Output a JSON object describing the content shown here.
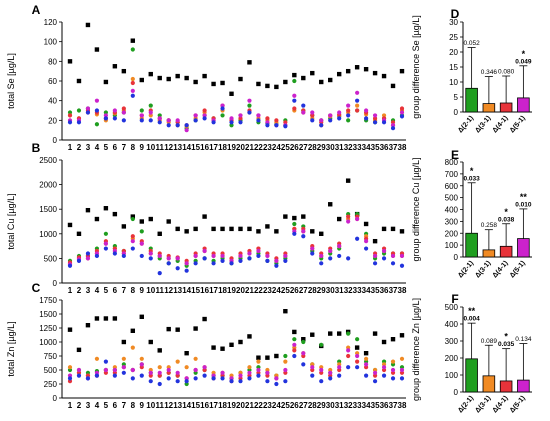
{
  "colors": {
    "g1": "#000000",
    "g2": "#1f9e1f",
    "g3": "#f08a24",
    "g4": "#e8333a",
    "g5": "#cc22cc",
    "g6": "#2233dd"
  },
  "chart_data": [
    {
      "type": "scatter",
      "panel": "A",
      "ylabel": "total Se [µg/L]",
      "ylim": [
        0,
        120
      ],
      "yticks": [
        "0",
        "20",
        "40",
        "60",
        "80",
        "100",
        "120"
      ],
      "x": [
        1,
        2,
        3,
        4,
        5,
        6,
        7,
        8,
        9,
        10,
        11,
        12,
        13,
        14,
        15,
        16,
        17,
        18,
        19,
        20,
        21,
        22,
        23,
        24,
        25,
        26,
        27,
        28,
        29,
        30,
        31,
        32,
        33,
        34,
        35,
        36,
        37,
        38
      ],
      "x_labels": [
        "1",
        "2",
        "3",
        "4",
        "5",
        "6",
        "7",
        "8",
        "9",
        "10",
        "11",
        "12",
        "13",
        "14",
        "15",
        "16",
        "17",
        "18",
        "19",
        "20",
        "21",
        "22",
        "23",
        "24",
        "25",
        "26",
        "27",
        "28",
        "29",
        "30",
        "31",
        "32",
        "33",
        "34",
        "35",
        "36",
        "37",
        "38"
      ],
      "series": [
        {
          "color_key": "g1",
          "values": [
            80,
            60,
            117,
            92,
            59,
            75,
            70,
            101,
            61,
            67,
            63,
            62,
            65,
            63,
            59,
            65,
            57,
            58,
            47,
            62,
            79,
            57,
            55,
            54,
            59,
            66,
            63,
            68,
            59,
            61,
            67,
            70,
            74,
            72,
            68,
            65,
            55,
            70
          ]
        },
        {
          "color_key": "g2",
          "values": [
            28,
            30,
            32,
            16,
            28,
            25,
            28,
            92,
            30,
            35,
            25,
            20,
            18,
            12,
            20,
            25,
            22,
            25,
            15,
            20,
            35,
            18,
            17,
            16,
            20,
            60,
            30,
            25,
            20,
            22,
            24,
            20,
            30,
            20,
            18,
            22,
            20,
            25
          ]
        },
        {
          "color_key": "g3",
          "values": [
            25,
            22,
            28,
            26,
            20,
            27,
            30,
            62,
            22,
            25,
            20,
            18,
            15,
            14,
            22,
            28,
            20,
            30,
            20,
            25,
            28,
            22,
            20,
            18,
            15,
            30,
            28,
            22,
            15,
            24,
            25,
            28,
            35,
            26,
            20,
            25,
            15,
            30
          ]
        },
        {
          "color_key": "g4",
          "values": [
            25,
            22,
            30,
            28,
            22,
            28,
            32,
            58,
            25,
            30,
            22,
            20,
            18,
            15,
            25,
            30,
            22,
            35,
            20,
            22,
            30,
            25,
            22,
            20,
            18,
            32,
            30,
            25,
            18,
            25,
            26,
            30,
            30,
            28,
            22,
            22,
            18,
            32
          ]
        },
        {
          "color_key": "g5",
          "values": [
            20,
            20,
            32,
            40,
            25,
            30,
            28,
            50,
            25,
            28,
            22,
            20,
            20,
            10,
            25,
            25,
            20,
            35,
            22,
            25,
            40,
            25,
            18,
            15,
            15,
            45,
            28,
            28,
            20,
            25,
            28,
            35,
            48,
            30,
            25,
            20,
            15,
            28
          ]
        },
        {
          "color_key": "g6",
          "values": [
            18,
            18,
            28,
            30,
            22,
            22,
            20,
            45,
            20,
            20,
            18,
            15,
            15,
            15,
            20,
            22,
            18,
            32,
            18,
            18,
            28,
            20,
            15,
            15,
            14,
            40,
            35,
            20,
            15,
            20,
            22,
            25,
            40,
            22,
            18,
            18,
            12,
            24
          ]
        }
      ]
    },
    {
      "type": "scatter",
      "panel": "B",
      "ylabel": "total Cu [µg/L]",
      "ylim": [
        0,
        2500
      ],
      "yticks": [
        "0",
        "500",
        "1000",
        "1500",
        "2000",
        "2500"
      ],
      "x": [
        1,
        2,
        3,
        4,
        5,
        6,
        7,
        8,
        9,
        10,
        11,
        12,
        13,
        14,
        15,
        16,
        17,
        18,
        19,
        20,
        21,
        22,
        23,
        24,
        25,
        26,
        27,
        28,
        29,
        30,
        31,
        32,
        33,
        34,
        35,
        36,
        37,
        38
      ],
      "x_labels": [
        "1",
        "2",
        "3",
        "4",
        "5",
        "6",
        "7",
        "8",
        "9",
        "10",
        "11",
        "12",
        "13",
        "14",
        "15",
        "16",
        "17",
        "18",
        "19",
        "20",
        "21",
        "22",
        "23",
        "24",
        "25",
        "26",
        "27",
        "28",
        "29",
        "30",
        "31",
        "32",
        "33",
        "34",
        "35",
        "36",
        "37",
        "38"
      ],
      "series": [
        {
          "color_key": "g1",
          "values": [
            1180,
            1000,
            1480,
            1300,
            1520,
            1400,
            1150,
            1350,
            1250,
            1300,
            1000,
            1250,
            1100,
            1050,
            1100,
            1350,
            1100,
            1100,
            1100,
            1100,
            1100,
            1050,
            1150,
            1050,
            1350,
            1320,
            1350,
            1050,
            1000,
            1600,
            1300,
            2080,
            1400,
            1200,
            850,
            1100,
            1100,
            1050
          ]
        },
        {
          "color_key": "g2",
          "values": [
            450,
            550,
            550,
            700,
            1000,
            750,
            650,
            1300,
            1050,
            700,
            500,
            400,
            450,
            350,
            450,
            500,
            450,
            500,
            400,
            500,
            500,
            600,
            450,
            400,
            500,
            1200,
            1150,
            650,
            500,
            600,
            700,
            1400,
            1400,
            1000,
            500,
            600,
            600,
            600
          ]
        },
        {
          "color_key": "g3",
          "values": [
            400,
            500,
            500,
            600,
            800,
            700,
            600,
            900,
            800,
            600,
            550,
            500,
            500,
            400,
            550,
            650,
            550,
            550,
            450,
            550,
            600,
            700,
            550,
            450,
            550,
            1100,
            1050,
            700,
            550,
            650,
            750,
            1300,
            1300,
            950,
            550,
            650,
            550,
            550
          ]
        },
        {
          "color_key": "g4",
          "values": [
            420,
            520,
            550,
            650,
            850,
            700,
            650,
            950,
            850,
            650,
            600,
            550,
            520,
            450,
            600,
            700,
            600,
            600,
            500,
            600,
            650,
            700,
            600,
            500,
            600,
            1100,
            1100,
            750,
            600,
            700,
            800,
            1350,
            1350,
            900,
            600,
            700,
            600,
            600
          ]
        },
        {
          "color_key": "g5",
          "values": [
            380,
            480,
            500,
            600,
            800,
            650,
            600,
            850,
            800,
            600,
            550,
            500,
            500,
            400,
            550,
            650,
            550,
            550,
            450,
            550,
            600,
            650,
            550,
            450,
            550,
            1050,
            1050,
            700,
            550,
            650,
            750,
            1250,
            1300,
            850,
            550,
            650,
            550,
            550
          ]
        },
        {
          "color_key": "g6",
          "values": [
            350,
            450,
            600,
            550,
            700,
            600,
            550,
            700,
            550,
            500,
            200,
            400,
            300,
            250,
            400,
            500,
            400,
            450,
            400,
            450,
            500,
            550,
            450,
            350,
            450,
            1000,
            950,
            600,
            400,
            500,
            550,
            500,
            900,
            700,
            400,
            500,
            400,
            350
          ]
        }
      ]
    },
    {
      "type": "scatter",
      "panel": "C",
      "ylabel": "total Zn [µg/L]",
      "ylim": [
        0,
        1750
      ],
      "yticks": [
        "0",
        "250",
        "500",
        "750",
        "1000",
        "1250",
        "1500",
        "1750"
      ],
      "x": [
        1,
        2,
        3,
        4,
        5,
        6,
        7,
        8,
        9,
        10,
        11,
        12,
        13,
        14,
        15,
        16,
        17,
        18,
        19,
        20,
        21,
        22,
        23,
        24,
        25,
        26,
        27,
        28,
        29,
        30,
        31,
        32,
        33,
        34,
        35,
        36,
        37,
        38
      ],
      "x_labels": [
        "1",
        "2",
        "3",
        "4",
        "5",
        "6",
        "7",
        "8",
        "9",
        "10",
        "11",
        "12",
        "13",
        "14",
        "15",
        "16",
        "17",
        "18",
        "19",
        "20",
        "21",
        "22",
        "23",
        "24",
        "25",
        "26",
        "27",
        "28",
        "29",
        "30",
        "31",
        "32",
        "33",
        "34",
        "35",
        "36",
        "37",
        "38"
      ],
      "series": [
        {
          "color_key": "g1",
          "values": [
            1220,
            860,
            1300,
            1420,
            1420,
            1420,
            1000,
            1200,
            1450,
            1000,
            850,
            1230,
            1220,
            800,
            1240,
            1410,
            900,
            880,
            950,
            1000,
            1100,
            720,
            720,
            750,
            1550,
            1180,
            1050,
            1130,
            930,
            1150,
            1150,
            1180,
            900,
            800,
            1150,
            1000,
            1050,
            1120
          ]
        },
        {
          "color_key": "g2",
          "values": [
            500,
            500,
            450,
            480,
            500,
            500,
            600,
            500,
            600,
            450,
            400,
            450,
            400,
            250,
            450,
            500,
            400,
            400,
            350,
            450,
            500,
            550,
            450,
            400,
            750,
            1050,
            1000,
            600,
            950,
            450,
            650,
            1150,
            1050,
            650,
            500,
            650,
            600,
            550
          ]
        },
        {
          "color_key": "g3",
          "values": [
            550,
            450,
            400,
            700,
            500,
            550,
            700,
            900,
            700,
            500,
            550,
            550,
            650,
            550,
            700,
            550,
            450,
            450,
            400,
            450,
            550,
            650,
            500,
            400,
            650,
            900,
            800,
            600,
            550,
            500,
            600,
            900,
            800,
            700,
            500,
            600,
            650,
            700
          ]
        },
        {
          "color_key": "g4",
          "values": [
            300,
            450,
            400,
            400,
            450,
            450,
            550,
            500,
            550,
            400,
            400,
            450,
            400,
            350,
            500,
            500,
            350,
            400,
            300,
            350,
            400,
            450,
            400,
            350,
            450,
            850,
            750,
            500,
            450,
            400,
            500,
            750,
            650,
            550,
            400,
            500,
            450,
            450
          ]
        },
        {
          "color_key": "g5",
          "values": [
            400,
            500,
            350,
            450,
            500,
            500,
            550,
            500,
            600,
            450,
            450,
            500,
            450,
            350,
            500,
            550,
            400,
            450,
            350,
            400,
            450,
            500,
            450,
            350,
            500,
            950,
            800,
            550,
            500,
            450,
            550,
            850,
            750,
            600,
            450,
            550,
            500,
            500
          ]
        },
        {
          "color_key": "g6",
          "values": [
            350,
            400,
            350,
            400,
            650,
            400,
            450,
            350,
            400,
            300,
            250,
            350,
            300,
            300,
            350,
            400,
            350,
            350,
            300,
            300,
            350,
            400,
            300,
            250,
            300,
            750,
            600,
            400,
            300,
            350,
            400,
            550,
            550,
            400,
            300,
            400,
            350,
            350
          ]
        }
      ]
    },
    {
      "type": "bar",
      "panel": "D",
      "ylabel": "group difference Se [µg/L]",
      "ylim": [
        0,
        30
      ],
      "yticks": [
        "0",
        "5",
        "10",
        "15",
        "20",
        "25",
        "30"
      ],
      "categories": [
        "Δ(2-1)",
        "Δ(3-1)",
        "Δ(4-1)",
        "Δ(5-1)"
      ],
      "values": [
        7.9,
        2.8,
        3.0,
        4.7
      ],
      "err_up": [
        21.5,
        11.8,
        12.0,
        15.4
      ],
      "color_keys": [
        "g2",
        "g3",
        "g4",
        "g5"
      ],
      "p_values": [
        "0.052",
        "0.346",
        "0.080",
        "0.049"
      ],
      "p_bold": [
        false,
        false,
        false,
        true
      ],
      "stars": [
        "",
        "",
        "",
        "*"
      ]
    },
    {
      "type": "bar",
      "panel": "E",
      "ylabel": "group difference Cu [µg/L]",
      "ylim": [
        0,
        800
      ],
      "yticks": [
        "0",
        "100",
        "200",
        "300",
        "400",
        "500",
        "600",
        "700",
        "800"
      ],
      "categories": [
        "Δ(2-1)",
        "Δ(3-1)",
        "Δ(4-1)",
        "Δ(5-1)"
      ],
      "values": [
        200,
        60,
        90,
        155
      ],
      "err_up": [
        625,
        230,
        280,
        405
      ],
      "color_keys": [
        "g2",
        "g3",
        "g4",
        "g5"
      ],
      "p_values": [
        "0.033",
        "0.258",
        "0.038",
        "0.010"
      ],
      "p_bold": [
        true,
        false,
        true,
        true
      ],
      "stars": [
        "*",
        "",
        "*",
        "**"
      ]
    },
    {
      "type": "bar",
      "panel": "F",
      "ylabel": "group difference Zn [µg/L]",
      "ylim": [
        0,
        500
      ],
      "yticks": [
        "0",
        "100",
        "200",
        "300",
        "400",
        "500"
      ],
      "categories": [
        "Δ(2-1)",
        "Δ(3-1)",
        "Δ(4-1)",
        "Δ(5-1)"
      ],
      "values": [
        195,
        95,
        65,
        70
      ],
      "err_up": [
        405,
        275,
        255,
        285
      ],
      "color_keys": [
        "g2",
        "g3",
        "g4",
        "g5"
      ],
      "p_values": [
        "0.004",
        "0.089",
        "0.035",
        "0.134"
      ],
      "p_bold": [
        true,
        false,
        true,
        false
      ],
      "stars": [
        "**",
        "",
        "*",
        ""
      ]
    }
  ]
}
